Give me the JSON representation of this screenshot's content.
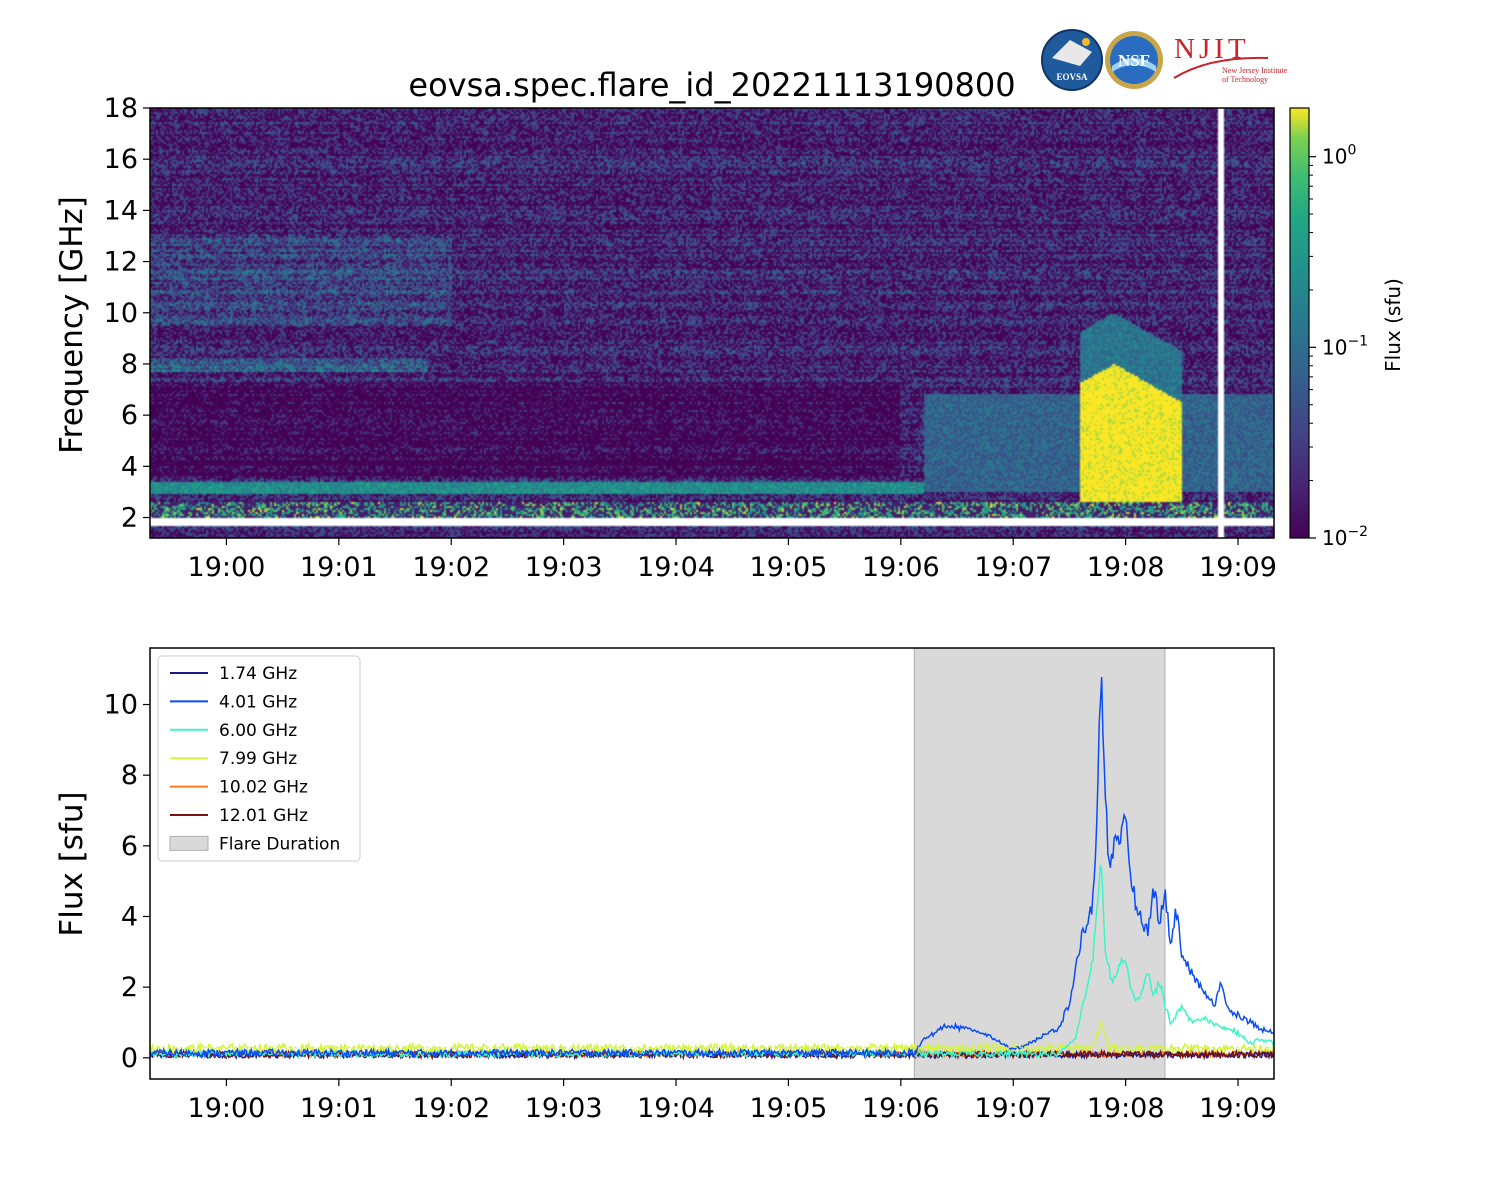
{
  "title": "eovsa.spec.flare_id_20221113190800",
  "logos": {
    "eovsa": "EOVSA",
    "nsf": "NSF",
    "njit": "NJIT",
    "njit_sub1": "New Jersey Institute",
    "njit_sub2": "of Technology"
  },
  "colors": {
    "flare_span": "#d9d9d9",
    "viridis_low": "#440154",
    "viridis_high": "#fde725"
  },
  "chart_data": [
    {
      "type": "heatmap",
      "ylabel": "Frequency [GHz]",
      "y_ticks": [
        2,
        4,
        6,
        8,
        10,
        12,
        14,
        16,
        18
      ],
      "ylim": [
        1.2,
        18
      ],
      "x_ticks": [
        "19:00",
        "19:01",
        "19:02",
        "19:03",
        "19:04",
        "19:05",
        "19:06",
        "19:07",
        "19:08",
        "19:09"
      ],
      "x_tick_minutes": [
        0,
        1,
        2,
        3,
        4,
        5,
        6,
        7,
        8,
        9
      ],
      "xlim_minutes": [
        -0.68,
        9.32
      ],
      "colorbar": {
        "label": "Flux  (sfu)",
        "scale": "log",
        "range": [
          0.01,
          1.8
        ],
        "ticks": [
          {
            "base": "10",
            "exp": "0",
            "value": 1
          },
          {
            "base": "10",
            "exp": "−1",
            "value": 0.1
          },
          {
            "base": "10",
            "exp": "−2",
            "value": 0.01
          }
        ]
      }
    },
    {
      "type": "line",
      "ylabel": "Flux [sfu]",
      "y_ticks": [
        0,
        2,
        4,
        6,
        8,
        10
      ],
      "ylim": [
        -0.6,
        11.6
      ],
      "x_ticks": [
        "19:00",
        "19:01",
        "19:02",
        "19:03",
        "19:04",
        "19:05",
        "19:06",
        "19:07",
        "19:08",
        "19:09"
      ],
      "x_tick_minutes": [
        0,
        1,
        2,
        3,
        4,
        5,
        6,
        7,
        8,
        9
      ],
      "xlim_minutes": [
        -0.68,
        9.32
      ],
      "flare_duration": {
        "label": "Flare Duration",
        "start_minutes": 6.12,
        "end_minutes": 8.35
      },
      "legend_position": "upper-left",
      "series": [
        {
          "name": "1.74 GHz",
          "color": "#1a1a8c",
          "baseline": 0.05,
          "noise": 0.08,
          "points": []
        },
        {
          "name": "4.01 GHz",
          "color": "#0b4df5",
          "baseline": 0.1,
          "noise": 0.1,
          "points": [
            [
              6.12,
              0.1
            ],
            [
              6.2,
              0.5
            ],
            [
              6.4,
              0.9
            ],
            [
              6.6,
              0.8
            ],
            [
              6.8,
              0.6
            ],
            [
              7.0,
              0.2
            ],
            [
              7.2,
              0.5
            ],
            [
              7.4,
              0.8
            ],
            [
              7.5,
              1.5
            ],
            [
              7.6,
              3.3
            ],
            [
              7.7,
              4.2
            ],
            [
              7.75,
              7.0
            ],
            [
              7.78,
              11.1
            ],
            [
              7.82,
              7.5
            ],
            [
              7.85,
              5.5
            ],
            [
              7.9,
              6.0
            ],
            [
              7.95,
              5.8
            ],
            [
              8.0,
              6.9
            ],
            [
              8.05,
              5.0
            ],
            [
              8.1,
              4.2
            ],
            [
              8.15,
              3.8
            ],
            [
              8.2,
              3.5
            ],
            [
              8.25,
              4.8
            ],
            [
              8.3,
              3.9
            ],
            [
              8.35,
              4.6
            ],
            [
              8.4,
              3.2
            ],
            [
              8.45,
              4.2
            ],
            [
              8.5,
              2.9
            ],
            [
              8.6,
              2.3
            ],
            [
              8.7,
              1.8
            ],
            [
              8.8,
              1.5
            ],
            [
              8.85,
              2.2
            ],
            [
              8.9,
              1.4
            ],
            [
              9.0,
              1.2
            ],
            [
              9.1,
              1.0
            ],
            [
              9.2,
              0.8
            ],
            [
              9.32,
              0.7
            ]
          ]
        },
        {
          "name": "6.00 GHz",
          "color": "#3bf5c8",
          "baseline": 0.08,
          "noise": 0.08,
          "points": [
            [
              7.4,
              0.1
            ],
            [
              7.55,
              0.5
            ],
            [
              7.65,
              1.9
            ],
            [
              7.7,
              2.6
            ],
            [
              7.75,
              4.2
            ],
            [
              7.78,
              5.6
            ],
            [
              7.82,
              3.0
            ],
            [
              7.88,
              2.1
            ],
            [
              7.95,
              2.6
            ],
            [
              8.0,
              2.8
            ],
            [
              8.05,
              1.8
            ],
            [
              8.1,
              1.6
            ],
            [
              8.15,
              1.9
            ],
            [
              8.2,
              2.4
            ],
            [
              8.25,
              1.7
            ],
            [
              8.3,
              2.2
            ],
            [
              8.35,
              1.5
            ],
            [
              8.4,
              1.0
            ],
            [
              8.5,
              1.4
            ],
            [
              8.6,
              1.0
            ],
            [
              8.7,
              1.1
            ],
            [
              8.8,
              0.9
            ],
            [
              8.9,
              0.8
            ],
            [
              9.0,
              0.7
            ],
            [
              9.1,
              0.4
            ],
            [
              9.2,
              0.5
            ],
            [
              9.32,
              0.4
            ]
          ]
        },
        {
          "name": "7.99 GHz",
          "color": "#d4f53b",
          "baseline": 0.2,
          "noise": 0.14,
          "points": [
            [
              7.7,
              0.2
            ],
            [
              7.78,
              0.95
            ],
            [
              7.85,
              0.3
            ]
          ]
        },
        {
          "name": "10.02 GHz",
          "color": "#ff7a14",
          "baseline": 0.08,
          "noise": 0.08,
          "points": []
        },
        {
          "name": "12.01 GHz",
          "color": "#7a1212",
          "baseline": 0.06,
          "noise": 0.09,
          "points": []
        }
      ]
    }
  ]
}
